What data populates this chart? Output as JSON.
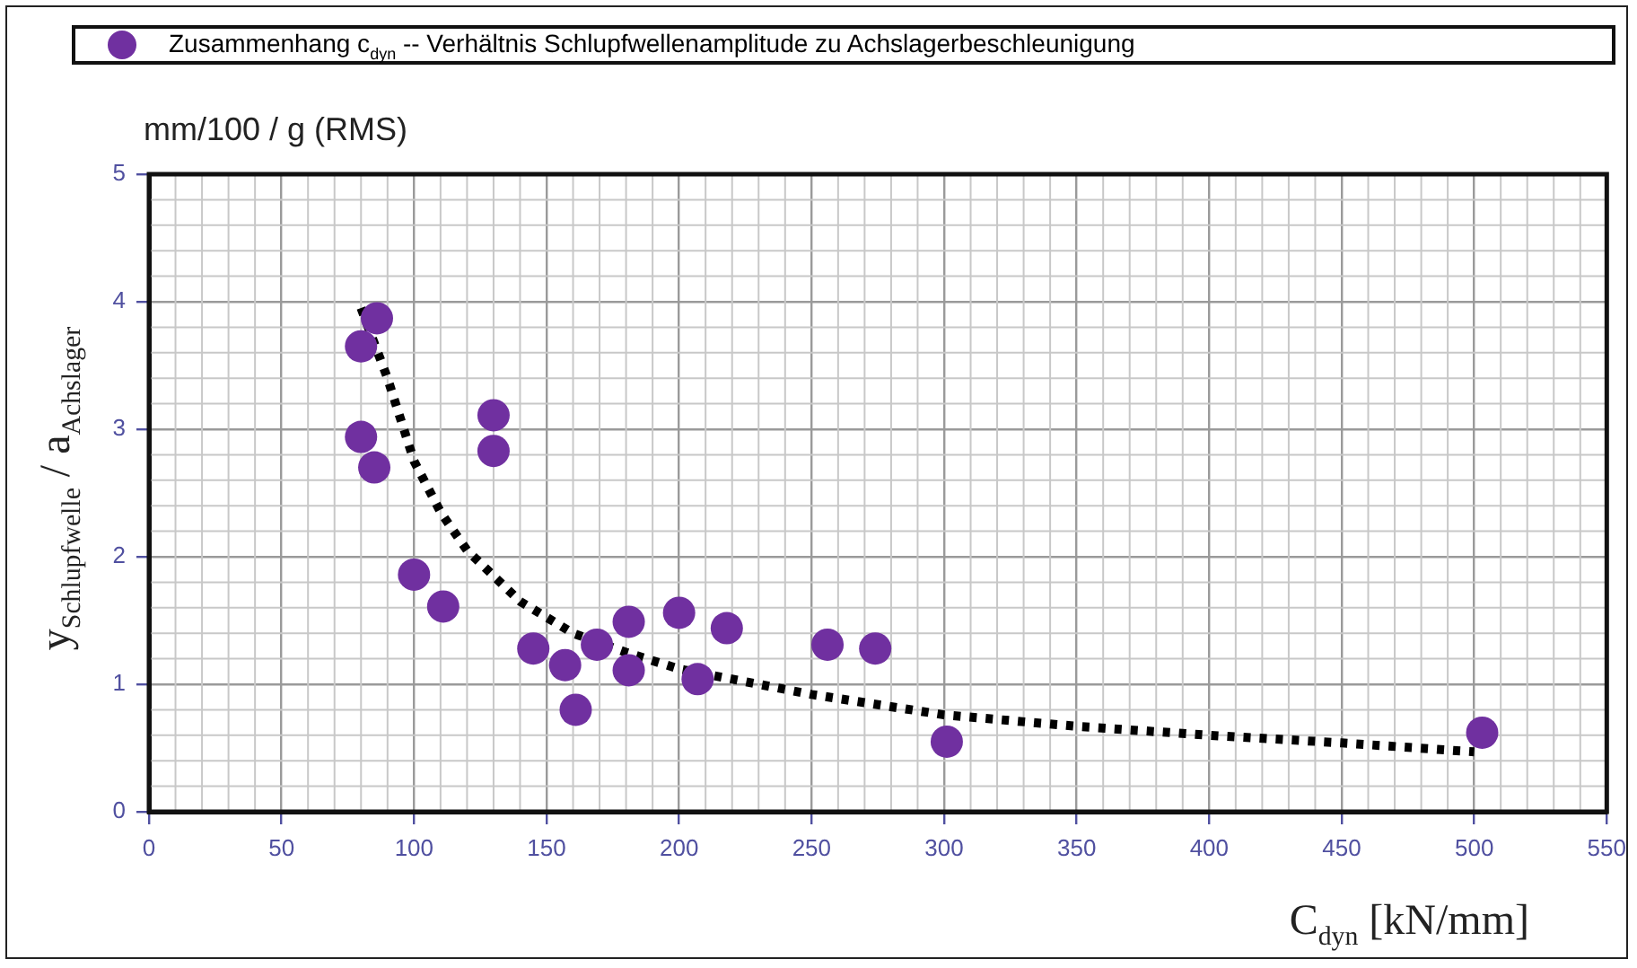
{
  "chart_data": {
    "type": "scatter",
    "xlabel": "C$_{dyn}$ [kN/mm]",
    "ylabel": "y$_{Schlupfwelle}$ / a$_{Achslager}$",
    "annotations": [
      "mm/100 / g (RMS)"
    ],
    "xlim": [
      0,
      550
    ],
    "xticks": [
      0,
      50,
      100,
      150,
      200,
      250,
      300,
      350,
      400,
      450,
      500,
      550
    ],
    "ylim": [
      0,
      5
    ],
    "yticks": [
      0,
      1,
      2,
      3,
      4,
      5
    ],
    "grid": true,
    "legend": "top",
    "marker": "circle",
    "series": [
      {
        "name": "Zusammenhang c$_{dyn}$ -- Verhältnis Schlupfwellenamplitude zu Achslagerbeschleunigung",
        "color": "#7030a0",
        "x": [
          80,
          86,
          80,
          85,
          100,
          111,
          130,
          130,
          145,
          157,
          161,
          169,
          181,
          181,
          200,
          207,
          218,
          256,
          274,
          301,
          503
        ],
        "values": [
          3.65,
          3.87,
          2.94,
          2.7,
          1.86,
          1.61,
          3.11,
          2.83,
          1.28,
          1.15,
          0.8,
          1.31,
          1.49,
          1.11,
          1.56,
          1.04,
          1.44,
          1.31,
          1.28,
          0.55,
          0.62
        ]
      },
      {
        "type": "line",
        "color": "#000000",
        "marker": "none",
        "line_style": "dotted",
        "x": [
          80,
          90,
          100,
          110,
          120,
          140,
          160,
          180,
          200,
          250,
          300,
          350,
          400,
          450,
          500
        ],
        "values": [
          3.95,
          3.4,
          2.75,
          2.35,
          2.05,
          1.65,
          1.4,
          1.25,
          1.12,
          0.92,
          0.76,
          0.67,
          0.6,
          0.54,
          0.47
        ]
      }
    ]
  }
}
